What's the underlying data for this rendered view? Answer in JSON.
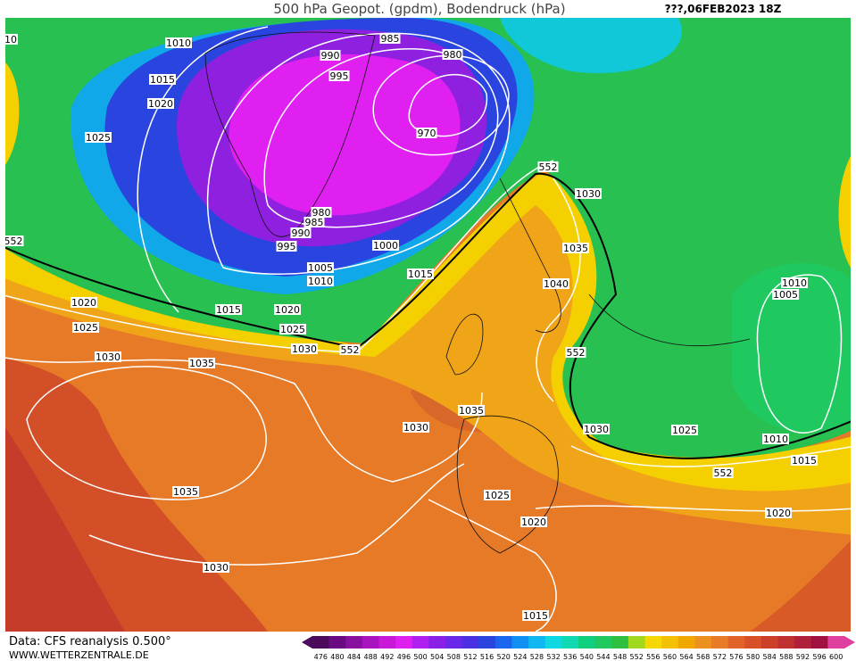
{
  "header": {
    "title": "500 hPa Geopot. (gpdm), Bodendruck (hPa)",
    "date": "???,06FEB2023 18Z"
  },
  "contour_labels": [
    "10",
    "1010",
    "985",
    "990",
    "980",
    "995",
    "1015",
    "1020",
    "1025",
    "970",
    "980",
    "985",
    "990",
    "995",
    "1000",
    "1005",
    "1010",
    "1015",
    "1020",
    "1015",
    "1020",
    "1025",
    "1025",
    "1030",
    "552",
    "1030",
    "1035",
    "1030",
    "1035",
    "1040",
    "552",
    "552",
    "552",
    "1005",
    "1010",
    "1035",
    "1030",
    "1030",
    "1025",
    "1010",
    "1015",
    "552",
    "1035",
    "1025",
    "1020",
    "1020",
    "1030",
    "1015"
  ],
  "footer": {
    "source": "Data: CFS reanalysis 0.500°",
    "site": "WWW.WETTERZENTRALE.DE"
  },
  "colorbar": {
    "labels": [
      476,
      480,
      484,
      488,
      492,
      496,
      500,
      504,
      508,
      512,
      516,
      520,
      524,
      528,
      532,
      536,
      540,
      544,
      548,
      552,
      556,
      560,
      564,
      568,
      572,
      576,
      580,
      584,
      588,
      592,
      596,
      600
    ],
    "colors": [
      "#4b0a5c",
      "#6a0a80",
      "#8a10a0",
      "#a814c0",
      "#c818d8",
      "#e020f0",
      "#b020f0",
      "#8a20e8",
      "#6a28e8",
      "#4a30e0",
      "#2a44e0",
      "#1a66f0",
      "#1090f0",
      "#10b8f0",
      "#10d8e0",
      "#10d8b0",
      "#10d080",
      "#20c860",
      "#30c040",
      "#a0d820",
      "#f5d800",
      "#f5c000",
      "#f0a800",
      "#ec9020",
      "#e87a28",
      "#e06428",
      "#d85028",
      "#cc4028",
      "#c03030",
      "#b02038",
      "#a01040",
      "#e040a0"
    ]
  }
}
